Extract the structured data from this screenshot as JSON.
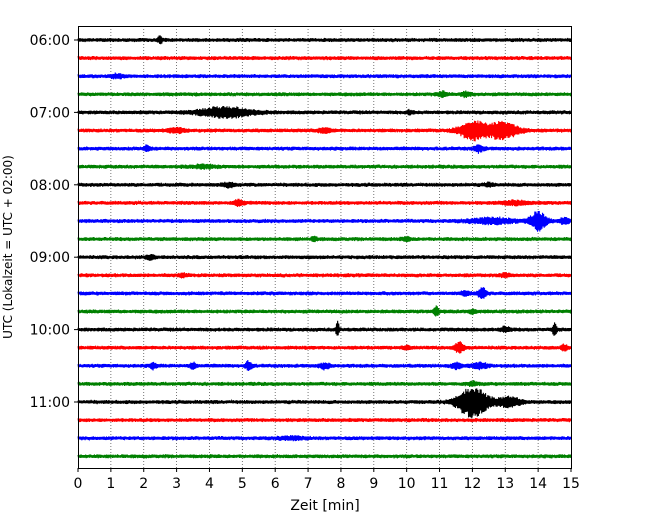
{
  "chart_data": {
    "type": "line",
    "title": "",
    "xlabel": "Zeit  [min]",
    "ylabel": "UTC (Lokalzeit = UTC + 02:00)",
    "xlim": [
      0,
      15
    ],
    "x_ticks": [
      0,
      1,
      2,
      3,
      4,
      5,
      6,
      7,
      8,
      9,
      10,
      11,
      12,
      13,
      14,
      15
    ],
    "y_tick_labels": [
      "06:00",
      "07:00",
      "08:00",
      "09:00",
      "10:00",
      "11:00"
    ],
    "y_tick_rows": [
      0,
      4,
      8,
      12,
      16,
      20
    ],
    "grid": "vertical dotted",
    "row_minutes": 15,
    "trace_colors": [
      "#000000",
      "#ff0000",
      "#0000ff",
      "#008000"
    ],
    "rows": [
      {
        "start": "06:00",
        "color": "#000000",
        "events": [
          {
            "t": 2.5,
            "amp": 0.35,
            "dur": 0.15
          }
        ]
      },
      {
        "start": "06:15",
        "color": "#ff0000",
        "events": []
      },
      {
        "start": "06:30",
        "color": "#0000ff",
        "events": [
          {
            "t": 1.2,
            "amp": 0.2,
            "dur": 0.4
          }
        ]
      },
      {
        "start": "06:45",
        "color": "#008000",
        "events": [
          {
            "t": 11.1,
            "amp": 0.25,
            "dur": 0.3
          },
          {
            "t": 11.8,
            "amp": 0.25,
            "dur": 0.3
          }
        ]
      },
      {
        "start": "07:00",
        "color": "#000000",
        "events": [
          {
            "t": 4.5,
            "amp": 0.55,
            "dur": 1.6
          },
          {
            "t": 10.1,
            "amp": 0.2,
            "dur": 0.2
          }
        ]
      },
      {
        "start": "07:15",
        "color": "#ff0000",
        "events": [
          {
            "t": 3.0,
            "amp": 0.25,
            "dur": 0.5
          },
          {
            "t": 7.5,
            "amp": 0.25,
            "dur": 0.4
          },
          {
            "t": 12.0,
            "amp": 1.0,
            "dur": 0.8
          },
          {
            "t": 12.9,
            "amp": 0.9,
            "dur": 1.0
          }
        ]
      },
      {
        "start": "07:30",
        "color": "#0000ff",
        "events": [
          {
            "t": 2.1,
            "amp": 0.3,
            "dur": 0.2
          },
          {
            "t": 12.2,
            "amp": 0.35,
            "dur": 0.3
          }
        ]
      },
      {
        "start": "07:45",
        "color": "#008000",
        "events": [
          {
            "t": 3.8,
            "amp": 0.15,
            "dur": 0.8
          }
        ]
      },
      {
        "start": "08:00",
        "color": "#000000",
        "events": [
          {
            "t": 4.6,
            "amp": 0.2,
            "dur": 0.4
          },
          {
            "t": 12.5,
            "amp": 0.15,
            "dur": 0.3
          }
        ]
      },
      {
        "start": "08:15",
        "color": "#ff0000",
        "events": [
          {
            "t": 4.9,
            "amp": 0.3,
            "dur": 0.3
          },
          {
            "t": 13.3,
            "amp": 0.2,
            "dur": 0.8
          }
        ]
      },
      {
        "start": "08:30",
        "color": "#0000ff",
        "events": [
          {
            "t": 12.6,
            "amp": 0.3,
            "dur": 1.4
          },
          {
            "t": 14.0,
            "amp": 1.0,
            "dur": 0.5
          },
          {
            "t": 14.8,
            "amp": 0.3,
            "dur": 0.3
          }
        ]
      },
      {
        "start": "08:45",
        "color": "#008000",
        "events": [
          {
            "t": 7.2,
            "amp": 0.2,
            "dur": 0.2
          },
          {
            "t": 10.0,
            "amp": 0.15,
            "dur": 0.3
          }
        ]
      },
      {
        "start": "09:00",
        "color": "#000000",
        "events": [
          {
            "t": 2.2,
            "amp": 0.2,
            "dur": 0.3
          }
        ]
      },
      {
        "start": "09:15",
        "color": "#ff0000",
        "events": [
          {
            "t": 3.2,
            "amp": 0.15,
            "dur": 0.3
          },
          {
            "t": 13.0,
            "amp": 0.2,
            "dur": 0.3
          }
        ]
      },
      {
        "start": "09:30",
        "color": "#0000ff",
        "events": [
          {
            "t": 11.8,
            "amp": 0.2,
            "dur": 0.3
          },
          {
            "t": 12.3,
            "amp": 0.6,
            "dur": 0.25
          }
        ]
      },
      {
        "start": "09:45",
        "color": "#008000",
        "events": [
          {
            "t": 10.9,
            "amp": 0.55,
            "dur": 0.15
          },
          {
            "t": 12.0,
            "amp": 0.2,
            "dur": 0.2
          }
        ]
      },
      {
        "start": "10:00",
        "color": "#000000",
        "events": [
          {
            "t": 7.9,
            "amp": 0.8,
            "dur": 0.1
          },
          {
            "t": 13.0,
            "amp": 0.25,
            "dur": 0.3
          },
          {
            "t": 14.5,
            "amp": 0.8,
            "dur": 0.12
          }
        ]
      },
      {
        "start": "10:15",
        "color": "#ff0000",
        "events": [
          {
            "t": 10.0,
            "amp": 0.2,
            "dur": 0.2
          },
          {
            "t": 11.6,
            "amp": 0.55,
            "dur": 0.3
          },
          {
            "t": 14.8,
            "amp": 0.3,
            "dur": 0.2
          }
        ]
      },
      {
        "start": "10:30",
        "color": "#0000ff",
        "events": [
          {
            "t": 2.3,
            "amp": 0.3,
            "dur": 0.2
          },
          {
            "t": 3.5,
            "amp": 0.3,
            "dur": 0.2
          },
          {
            "t": 5.2,
            "amp": 0.5,
            "dur": 0.2
          },
          {
            "t": 7.5,
            "amp": 0.3,
            "dur": 0.3
          },
          {
            "t": 11.5,
            "amp": 0.3,
            "dur": 0.3
          },
          {
            "t": 12.2,
            "amp": 0.3,
            "dur": 0.5
          }
        ]
      },
      {
        "start": "10:45",
        "color": "#008000",
        "events": [
          {
            "t": 12.0,
            "amp": 0.2,
            "dur": 0.3
          }
        ]
      },
      {
        "start": "11:00",
        "color": "#000000",
        "events": [
          {
            "t": 12.0,
            "amp": 1.7,
            "dur": 0.9
          },
          {
            "t": 13.1,
            "amp": 0.5,
            "dur": 0.8
          }
        ]
      },
      {
        "start": "11:15",
        "color": "#ff0000",
        "events": []
      },
      {
        "start": "11:30",
        "color": "#0000ff",
        "events": [
          {
            "t": 6.5,
            "amp": 0.15,
            "dur": 0.8
          }
        ]
      },
      {
        "start": "11:45",
        "color": "#008000",
        "events": []
      }
    ]
  }
}
